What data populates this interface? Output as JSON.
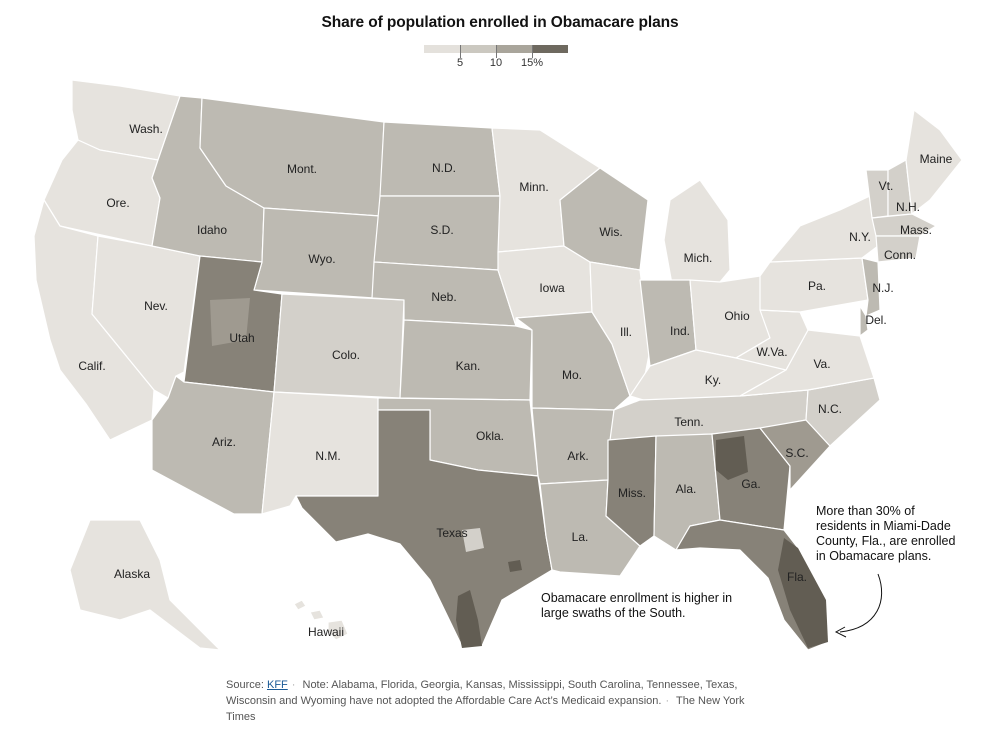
{
  "title": "Share of population enrolled in Obamacare plans",
  "legend": {
    "ticks": [
      "5",
      "10",
      "15%"
    ],
    "colors": [
      "#e4e1dc",
      "#cbc8c0",
      "#a9a59b",
      "#6e695f"
    ]
  },
  "colors": {
    "c1": "#e6e3de",
    "c2": "#d3d0ca",
    "c3": "#bdbab2",
    "c4": "#9f9a90",
    "c5": "#878278",
    "c6": "#625d53",
    "border": "#ffffff",
    "county": "#e9e7e2"
  },
  "states": {
    "wash": "Wash.",
    "ore": "Ore.",
    "calif": "Calif.",
    "nev": "Nev.",
    "idaho": "Idaho",
    "mont": "Mont.",
    "wyo": "Wyo.",
    "utah": "Utah",
    "colo": "Colo.",
    "ariz": "Ariz.",
    "nm": "N.M.",
    "nd": "N.D.",
    "sd": "S.D.",
    "neb": "Neb.",
    "kan": "Kan.",
    "okla": "Okla.",
    "texas": "Texas",
    "minn": "Minn.",
    "iowa": "Iowa",
    "mo": "Mo.",
    "ark": "Ark.",
    "la": "La.",
    "wis": "Wis.",
    "ill": "Ill.",
    "mich": "Mich.",
    "ind": "Ind.",
    "ohio": "Ohio",
    "ky": "Ky.",
    "tenn": "Tenn.",
    "miss": "Miss.",
    "ala": "Ala.",
    "ga": "Ga.",
    "fla": "Fla.",
    "sc": "S.C.",
    "nc": "N.C.",
    "va": "Va.",
    "wva": "W.Va.",
    "pa": "Pa.",
    "ny": "N.Y.",
    "vt": "Vt.",
    "nh": "N.H.",
    "maine": "Maine",
    "mass": "Mass.",
    "conn": "Conn.",
    "nj": "N.J.",
    "del": "Del.",
    "alaska": "Alaska",
    "hawaii": "Hawaii"
  },
  "annotations": {
    "miami": "More than 30% of residents in Miami-Dade County, Fla., are enrolled in Obamacare plans.",
    "south": "Obamacare enrollment is higher in large swaths of the South."
  },
  "footer": {
    "source_label": "Source:",
    "source_link": "KFF",
    "note": "Note: Alabama, Florida, Georgia, Kansas, Mississippi, South Carolina, Tennessee, Texas, Wisconsin and Wyoming have not adopted the Affordable Care Act’s Medicaid expansion.",
    "credit": "The New York Times"
  }
}
